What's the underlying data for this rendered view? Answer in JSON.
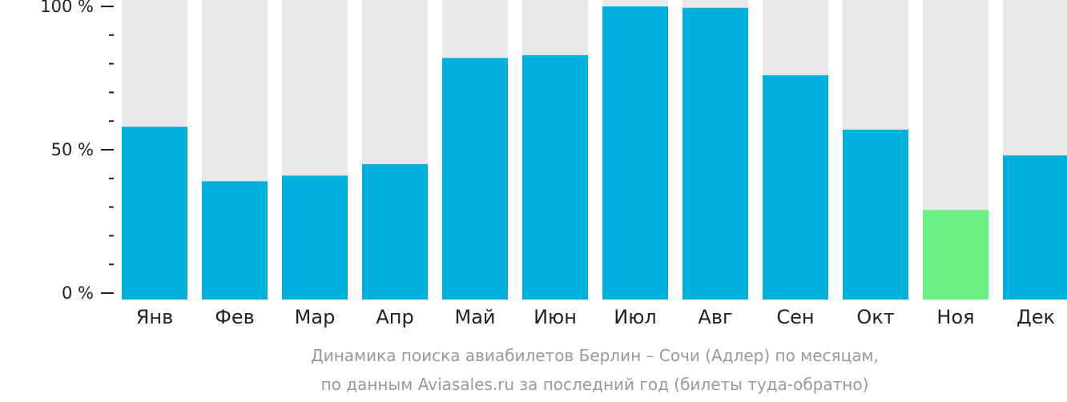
{
  "chart_data": {
    "type": "bar",
    "categories": [
      "Янв",
      "Фев",
      "Мар",
      "Апр",
      "Май",
      "Июн",
      "Июл",
      "Авг",
      "Сен",
      "Окт",
      "Ноя",
      "Дек"
    ],
    "values": [
      58,
      39,
      41,
      45,
      82,
      83,
      100,
      99.5,
      76,
      57,
      29,
      48
    ],
    "ylim": [
      0,
      100
    ],
    "yticks": [
      {
        "value": 100,
        "label": "100 %"
      },
      {
        "value": 50,
        "label": "50 %"
      },
      {
        "value": 0,
        "label": "0 %"
      }
    ],
    "minor_tick_step": 10,
    "highlight_index": 10,
    "colors": {
      "bar": "#00b0dc",
      "highlight": "#6aef85",
      "background_bar": "#e8e8e8",
      "axis": "#222222",
      "caption": "#999999"
    }
  },
  "caption": {
    "line1": "Динамика поиска авиабилетов Берлин – Сочи (Адлер) по месяцам,",
    "line2": "по данным Aviasales.ru за последний год (билеты туда-обратно)"
  }
}
